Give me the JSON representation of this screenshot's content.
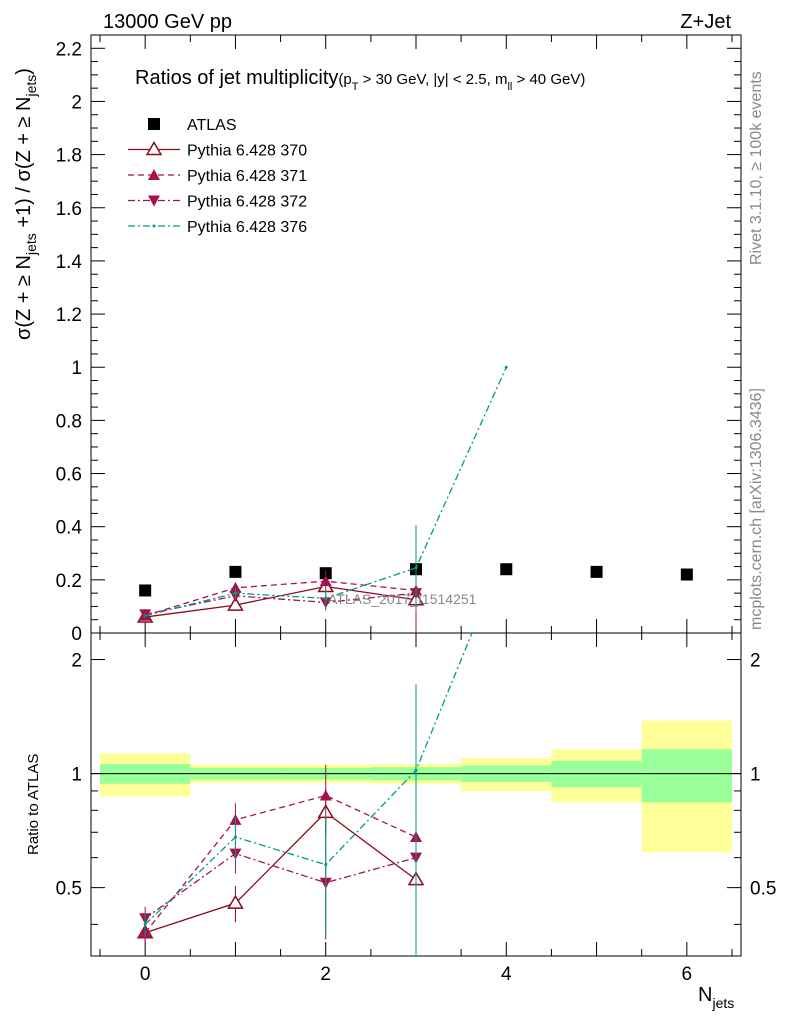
{
  "header": {
    "energy_label": "13000 GeV pp",
    "process_label": "Z+Jet"
  },
  "side_labels": {
    "rivet": "Rivet 3.1.10, ≥ 100k events",
    "mcplots": "mcplots.cern.ch [arXiv:1306.3436]"
  },
  "watermark": "ATLAS_2017_I1514251",
  "colors": {
    "atlas": "#000000",
    "p370": "#8b0a1a",
    "p371": "#a3124e",
    "p372": "#a3124e",
    "p376": "#009a8a",
    "band_inner": "#99ff99",
    "band_outer": "#ffff99"
  },
  "chart_data": [
    {
      "type": "scatter",
      "panel": "main",
      "title": "Ratios of jet multiplicity",
      "title_cuts": {
        "pt_pre": "(p",
        "pt_sub": "T",
        "pt_post": " > 30 GeV, |y| < 2.5, m",
        "m_sub": "ll",
        "m_post": " > 40 GeV)"
      },
      "ylabel": {
        "a": "σ(Z + ≥ N",
        "a_sub": "jets",
        "b": " +1) / σ(Z + ≥ N",
        "b_sub": "jets",
        "c": ")"
      },
      "xlim": [
        -0.6,
        6.6
      ],
      "ylim": [
        0,
        2.25
      ],
      "y_ticks": [
        "0",
        "0.2",
        "0.4",
        "0.6",
        "0.8",
        "1",
        "1.2",
        "1.4",
        "1.6",
        "1.8",
        "2",
        "2.2"
      ],
      "legend_position": "top-left",
      "series": [
        {
          "name": "ATLAS",
          "marker": "square",
          "x": [
            0,
            1,
            2,
            3,
            4,
            5,
            6
          ],
          "y": [
            0.16,
            0.23,
            0.225,
            0.24,
            0.24,
            0.23,
            0.22
          ]
        },
        {
          "name": "Pythia 6.428 370",
          "marker": "triangle-up-open",
          "line": "solid",
          "x": [
            0,
            1,
            2,
            3
          ],
          "y": [
            0.06,
            0.105,
            0.175,
            0.125
          ],
          "yerr": [
            0.005,
            0.01,
            0.025,
            0.13
          ]
        },
        {
          "name": "Pythia 6.428 371",
          "marker": "triangle-up",
          "line": "dashed",
          "x": [
            0,
            1,
            2,
            3
          ],
          "y": [
            0.065,
            0.17,
            0.195,
            0.16
          ],
          "yerr": [
            0.005,
            0.015,
            0.04,
            0.16
          ]
        },
        {
          "name": "Pythia 6.428 372",
          "marker": "triangle-down",
          "line": "dashdot",
          "x": [
            0,
            1,
            2,
            3
          ],
          "y": [
            0.07,
            0.14,
            0.115,
            0.15
          ],
          "yerr": [
            0.005,
            0.015,
            0.03,
            0.15
          ]
        },
        {
          "name": "Pythia 6.428 376",
          "marker": "dot",
          "line": "dashdot",
          "x": [
            0,
            1,
            2,
            3,
            4
          ],
          "y": [
            0.065,
            0.15,
            0.13,
            0.245,
            1.0
          ],
          "yerr": [
            0.005,
            0.02,
            0.04,
            0.16,
            0
          ]
        }
      ]
    },
    {
      "type": "scatter",
      "panel": "ratio",
      "ylabel": "Ratio to ATLAS",
      "xlabel": {
        "main": "N",
        "sub": "jets"
      },
      "xlim": [
        -0.6,
        6.6
      ],
      "ylim": [
        0.33,
        2.35
      ],
      "x_ticks": [
        "0",
        "2",
        "4",
        "6"
      ],
      "y_ticks": [
        "0.5",
        "1",
        "2"
      ],
      "bands": {
        "x_edges": [
          -0.5,
          0.5,
          1.5,
          2.5,
          3.5,
          4.5,
          5.5,
          6.5
        ],
        "inner_lo": [
          0.94,
          0.965,
          0.965,
          0.96,
          0.95,
          0.92,
          0.84
        ],
        "inner_hi": [
          1.06,
          1.035,
          1.035,
          1.04,
          1.05,
          1.08,
          1.16
        ],
        "outer_lo": [
          0.87,
          0.945,
          0.945,
          0.94,
          0.9,
          0.84,
          0.62
        ],
        "outer_hi": [
          1.13,
          1.055,
          1.055,
          1.06,
          1.1,
          1.16,
          1.38
        ]
      },
      "series": [
        {
          "name": "Pythia 6.428 370",
          "x": [
            0,
            1,
            2,
            3
          ],
          "y": [
            0.38,
            0.455,
            0.79,
            0.525
          ],
          "yerr": [
            0.03,
            0.05,
            0.12,
            0.5
          ]
        },
        {
          "name": "Pythia 6.428 371",
          "x": [
            0,
            1,
            2,
            3
          ],
          "y": [
            0.38,
            0.755,
            0.875,
            0.68
          ],
          "yerr": [
            0.03,
            0.08,
            0.18,
            0.6
          ]
        },
        {
          "name": "Pythia 6.428 372",
          "x": [
            0,
            1,
            2,
            3
          ],
          "y": [
            0.415,
            0.615,
            0.515,
            0.6
          ],
          "yerr": [
            0.03,
            0.07,
            0.15,
            0.6
          ]
        },
        {
          "name": "Pythia 6.428 376",
          "x": [
            0,
            1,
            2,
            3,
            3.62
          ],
          "y": [
            0.4,
            0.68,
            0.575,
            1.02,
            2.35
          ],
          "yerr": [
            0.03,
            0.09,
            0.2,
            0.7,
            0
          ]
        }
      ]
    }
  ]
}
